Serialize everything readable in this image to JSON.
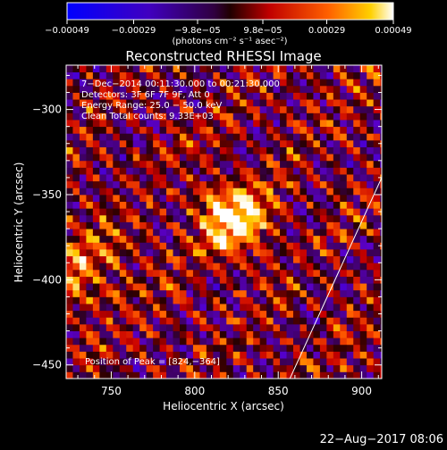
{
  "chart_data": {
    "type": "heatmap",
    "title": "Reconstructed RHESSI Image",
    "xlabel": "Heliocentric X (arcsec)",
    "ylabel": "Heliocentric Y (arcsec)",
    "xlim": [
      723,
      912
    ],
    "ylim": [
      -458,
      -274
    ],
    "x_ticks": [
      750,
      800,
      850,
      900
    ],
    "x_tick_labels": [
      "750",
      "800",
      "850",
      "900"
    ],
    "y_ticks": [
      -300,
      -350,
      -400,
      -450
    ],
    "y_tick_labels": [
      "−300",
      "−350",
      "−400",
      "−450"
    ],
    "colorbar": {
      "vmin": -0.00049,
      "vmax": 0.00049,
      "ticks": [
        -0.00049,
        -0.00029,
        -9.8e-05,
        9.8e-05,
        0.00029,
        0.00049
      ],
      "tick_labels": [
        "−0.00049",
        "−0.00029",
        "−9.8e−05",
        "9.8e−05",
        "0.00029",
        "0.00049"
      ],
      "unit_label": "(photons cm⁻² s⁻¹ asec⁻²)"
    },
    "annotations": [
      "7−Dec−2014 00:11:30.000 to 00:21:30.000",
      "Detectors: 3F 6F 7F 9F, Att 0",
      "Energy Range: 25.0 − 50.0 keV",
      "Clean    Total counts: 9.33E+03"
    ],
    "peak_label": "Position of Peak = [824,−364]",
    "peak": [
      824,
      -364
    ],
    "limb_line": [
      [
        857,
        -458
      ],
      [
        912,
        -340
      ]
    ],
    "footer_date": "22−Aug−2017 08:06",
    "colormap": [
      "#000000",
      "#0000ff",
      "#6000c0",
      "#ff0000",
      "#ff8000",
      "#ffff00",
      "#ffffff"
    ]
  }
}
